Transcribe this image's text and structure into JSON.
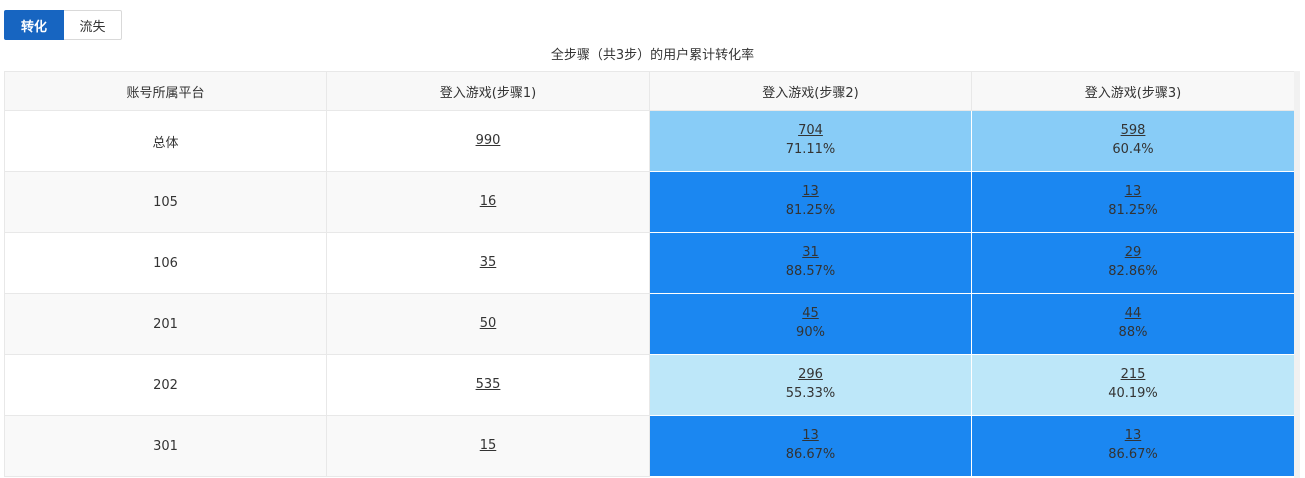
{
  "tabs": [
    {
      "label": "转化",
      "active": true
    },
    {
      "label": "流失",
      "active": false
    }
  ],
  "title": "全步骤（共3步）的用户累计转化率",
  "columns": [
    "账号所属平台",
    "登入游戏(步骤1)",
    "登入游戏(步骤2)",
    "登入游戏(步骤3)"
  ],
  "colors": {
    "light_blue": "#88ccf7",
    "dark_blue": "#1b87f1",
    "pale_blue": "#bde7f9",
    "tint": "#e8f4fc"
  },
  "rows": [
    {
      "label": "总体",
      "step1": "990",
      "step2": {
        "count": "704",
        "pct": "71.11%",
        "color": "#88ccf7"
      },
      "step3": {
        "count": "598",
        "pct": "60.4%",
        "color": "#88ccf7"
      },
      "tint": false
    },
    {
      "label": "105",
      "step1": "16",
      "step2": {
        "count": "13",
        "pct": "81.25%",
        "color": "#1b87f1"
      },
      "step3": {
        "count": "13",
        "pct": "81.25%",
        "color": "#1b87f1"
      },
      "tint": true
    },
    {
      "label": "106",
      "step1": "35",
      "step2": {
        "count": "31",
        "pct": "88.57%",
        "color": "#1b87f1"
      },
      "step3": {
        "count": "29",
        "pct": "82.86%",
        "color": "#1b87f1"
      },
      "tint": false
    },
    {
      "label": "201",
      "step1": "50",
      "step2": {
        "count": "45",
        "pct": "90%",
        "color": "#1b87f1"
      },
      "step3": {
        "count": "44",
        "pct": "88%",
        "color": "#1b87f1"
      },
      "tint": false
    },
    {
      "label": "202",
      "step1": "535",
      "step2": {
        "count": "296",
        "pct": "55.33%",
        "color": "#bde7f9"
      },
      "step3": {
        "count": "215",
        "pct": "40.19%",
        "color": "#bde7f9"
      },
      "tint": false
    },
    {
      "label": "301",
      "step1": "15",
      "step2": {
        "count": "13",
        "pct": "86.67%",
        "color": "#1b87f1"
      },
      "step3": {
        "count": "13",
        "pct": "86.67%",
        "color": "#1b87f1"
      },
      "tint": false
    }
  ]
}
